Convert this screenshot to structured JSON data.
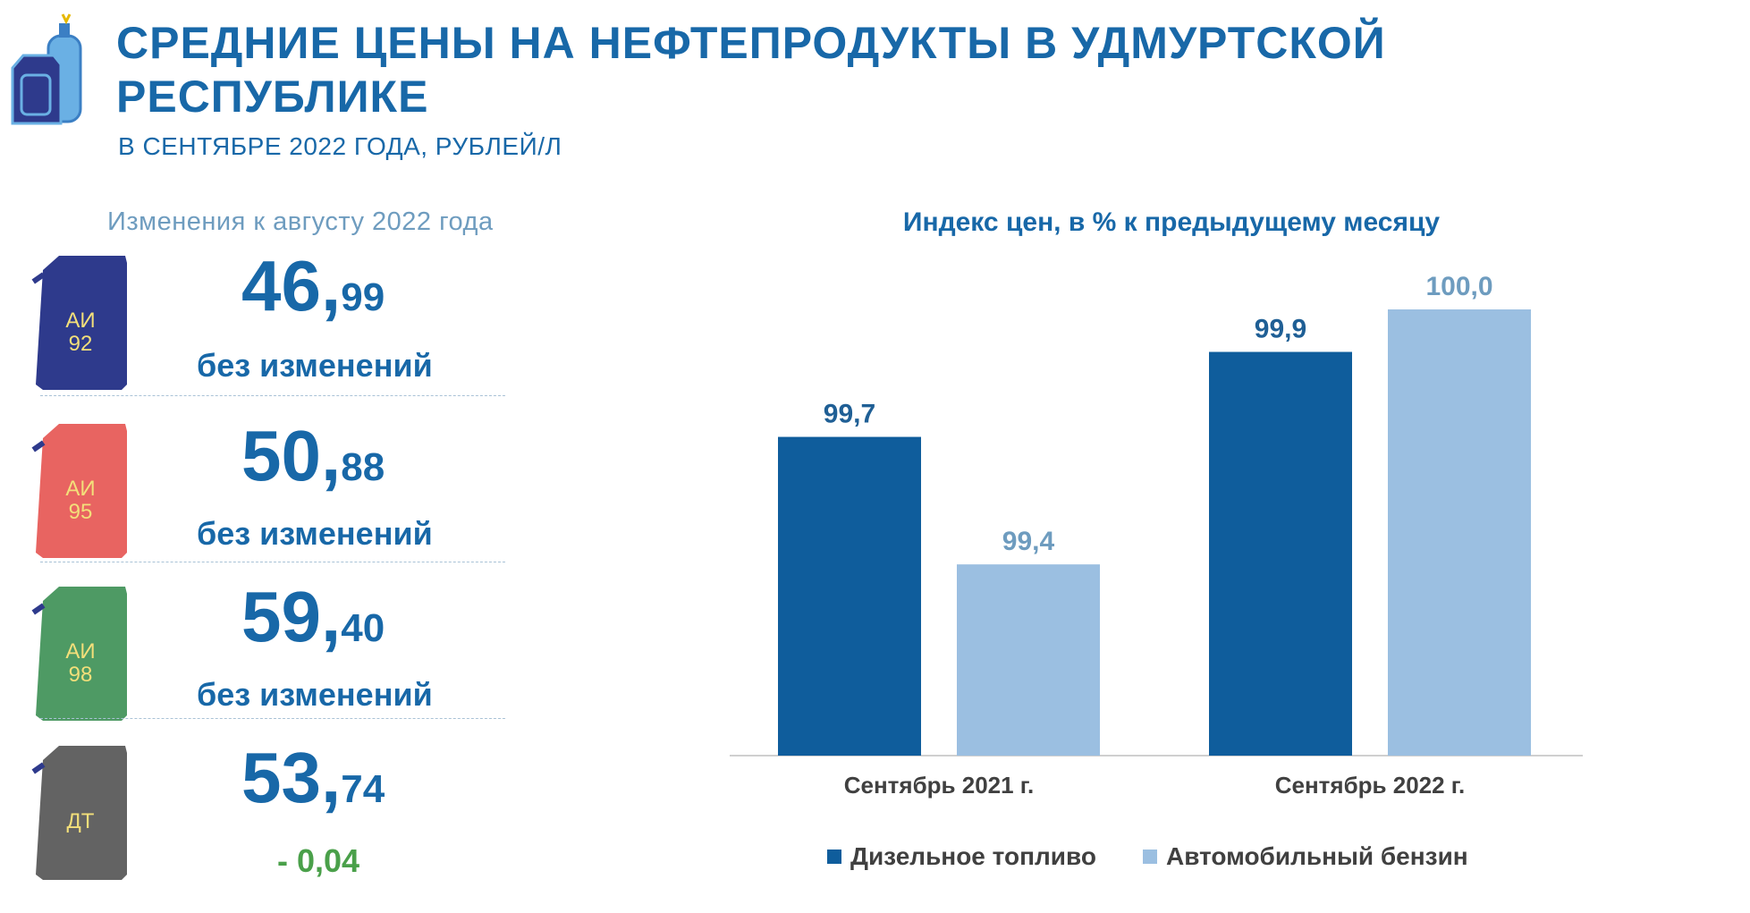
{
  "header": {
    "title": "СРЕДНИЕ ЦЕНЫ НА НЕФТЕПРОДУКТЫ В УДМУРТСКОЙ РЕСПУБЛИКЕ",
    "subtitle": "В СЕНТЯБРЕ 2022 ГОДА, РУБЛЕЙ/Л"
  },
  "left_panel": {
    "heading": "Изменения  к августу 2022 года",
    "fuels": [
      {
        "label": "АИ",
        "sublabel": "92",
        "price_int": "46,",
        "price_frac": "99",
        "change": "без изменений",
        "color": "#2e3a8c",
        "change_color": "#1868a8"
      },
      {
        "label": "АИ",
        "sublabel": "95",
        "price_int": "50,",
        "price_frac": "88",
        "change": "без изменений",
        "color": "#e86461",
        "change_color": "#1868a8"
      },
      {
        "label": "АИ",
        "sublabel": "98",
        "price_int": "59,",
        "price_frac": "40",
        "change": "без изменений",
        "color": "#4e9a64",
        "change_color": "#1868a8"
      },
      {
        "label": "ДТ",
        "sublabel": "",
        "price_int": "53,",
        "price_frac": "74",
        "change": "- 0,04",
        "color": "#636363",
        "change_color": "#4aa04a"
      }
    ]
  },
  "chart_data": {
    "type": "bar",
    "title": "Индекс цен, в % к предыдущему месяцу",
    "categories": [
      "Сентябрь 2021 г.",
      "Сентябрь 2022 г."
    ],
    "series": [
      {
        "name": "Дизельное топливо",
        "values": [
          99.7,
          99.9
        ],
        "labels": [
          "99,7",
          "99,9"
        ],
        "color": "#0f5d9c",
        "label_color": "#1f5f95"
      },
      {
        "name": "Автомобильный бензин",
        "values": [
          99.4,
          100.0
        ],
        "labels": [
          "99,4",
          "100,0"
        ],
        "color": "#9bbfe1",
        "label_color": "#6e9cbf"
      }
    ],
    "ylim": [
      98.95,
      100.0
    ],
    "legend": "bottom"
  }
}
